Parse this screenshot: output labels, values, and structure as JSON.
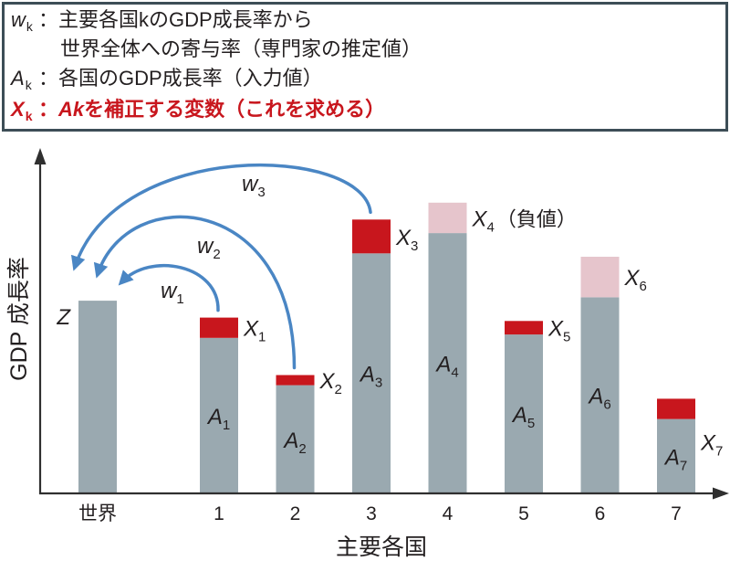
{
  "legend": {
    "items": [
      {
        "symbol": "w",
        "sub": "k",
        "text": "：主要各国kのGDP成長率から",
        "text_cont": "世界全体への寄与率（専門家の推定値）"
      },
      {
        "symbol": "A",
        "sub": "k",
        "text": "：各国のGDP成長率（入力値）"
      },
      {
        "symbol": "X",
        "sub": "k",
        "text_pre": "：",
        "term": "Ak",
        "text": "を補正する変数（これを求める）"
      }
    ]
  },
  "colors": {
    "text": "#231f20",
    "highlight": "#c8161d",
    "legend_border": "#3d4e57",
    "bar": "#9aa9b0",
    "adjust_positive": "#c8161d",
    "adjust_negative": "#e6c5cc",
    "arrow": "#4a86c4",
    "axis": "#2f2f2f"
  },
  "chart_data": {
    "type": "bar",
    "stacked": true,
    "xlabel": "主要各国",
    "ylabel": "GDP 成長率",
    "ylim": [
      0,
      100
    ],
    "grid": false,
    "categories": [
      "世界",
      "1",
      "2",
      "3",
      "4",
      "5",
      "6",
      "7"
    ],
    "bars": [
      {
        "value": 57,
        "label": {
          "main": "Z"
        }
      },
      {
        "value": 46,
        "label": {
          "main": "A",
          "sub": "1"
        },
        "adjust": 6,
        "adjust_label": {
          "main": "X",
          "sub": "1"
        },
        "weight_label": {
          "main": "w",
          "sub": "1"
        }
      },
      {
        "value": 32,
        "label": {
          "main": "A",
          "sub": "2"
        },
        "adjust": 3,
        "adjust_label": {
          "main": "X",
          "sub": "2"
        },
        "weight_label": {
          "main": "w",
          "sub": "2"
        }
      },
      {
        "value": 71,
        "label": {
          "main": "A",
          "sub": "3"
        },
        "adjust": 10,
        "adjust_label": {
          "main": "X",
          "sub": "3"
        },
        "weight_label": {
          "main": "w",
          "sub": "3"
        }
      },
      {
        "value": 86,
        "label": {
          "main": "A",
          "sub": "4"
        },
        "adjust": -9,
        "adjust_label": {
          "main": "X",
          "sub": "4",
          "suffix": "（負値）"
        }
      },
      {
        "value": 47,
        "label": {
          "main": "A",
          "sub": "5"
        },
        "adjust": 4,
        "adjust_label": {
          "main": "X",
          "sub": "5"
        }
      },
      {
        "value": 70,
        "label": {
          "main": "A",
          "sub": "6"
        },
        "adjust": -12,
        "adjust_label": {
          "main": "X",
          "sub": "6"
        }
      },
      {
        "value": 22,
        "label": {
          "main": "A",
          "sub": "7"
        },
        "adjust": 6,
        "adjust_label": {
          "main": "X",
          "sub": "7"
        }
      }
    ]
  }
}
